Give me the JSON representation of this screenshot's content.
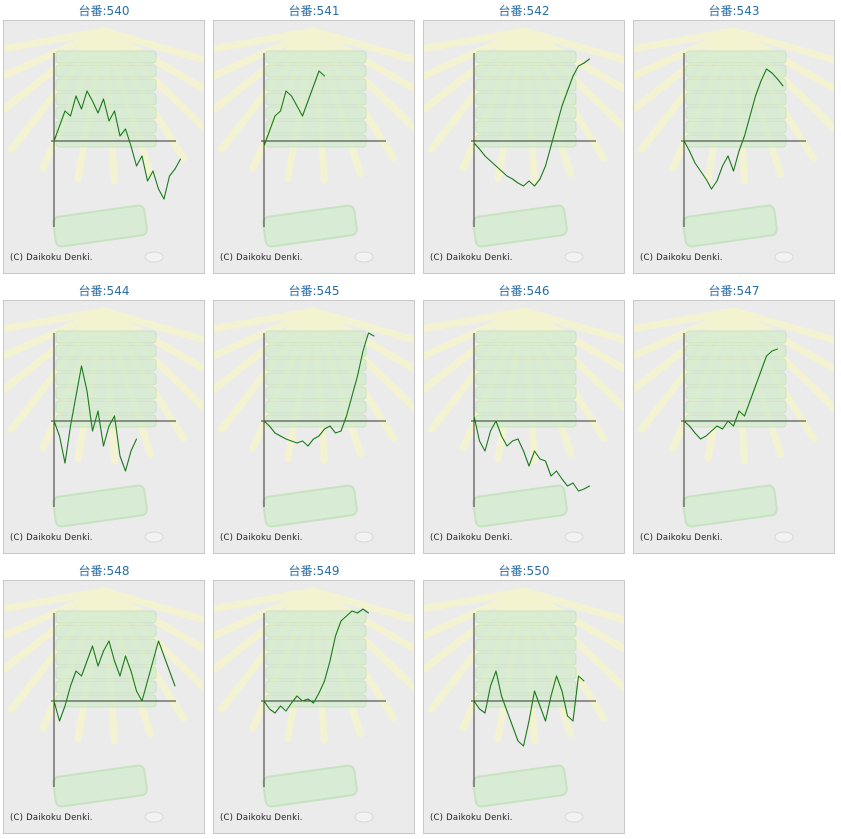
{
  "page": {
    "copyright": "(C) Daikoku Denki.",
    "line_color": "#1a7a1a",
    "axis_color": "#333333",
    "title_color": "#2a6fa8"
  },
  "charts": [
    {
      "title": "台番:540"
    },
    {
      "title": "台番:541"
    },
    {
      "title": "台番:542"
    },
    {
      "title": "台番:543"
    },
    {
      "title": "台番:544"
    },
    {
      "title": "台番:545"
    },
    {
      "title": "台番:546"
    },
    {
      "title": "台番:547"
    },
    {
      "title": "台番:548"
    },
    {
      "title": "台番:549"
    },
    {
      "title": "台番:550"
    }
  ],
  "chart_data": [
    {
      "type": "line",
      "title": "台番:540",
      "x": [
        0,
        5,
        10,
        15,
        20,
        25,
        30,
        35,
        40,
        45,
        50,
        55,
        60,
        65,
        70,
        75,
        80,
        85,
        90,
        95,
        100,
        105,
        110,
        115
      ],
      "y": [
        0,
        15,
        30,
        25,
        45,
        32,
        50,
        40,
        28,
        42,
        20,
        30,
        5,
        12,
        -5,
        -25,
        -15,
        -40,
        -30,
        -48,
        -58,
        -35,
        -28,
        -18
      ]
    },
    {
      "type": "line",
      "title": "台番:541",
      "x": [
        0,
        5,
        10,
        15,
        20,
        25,
        30,
        35,
        40,
        45,
        50,
        55
      ],
      "y": [
        -5,
        10,
        25,
        30,
        50,
        45,
        35,
        25,
        40,
        55,
        70,
        65
      ]
    },
    {
      "type": "line",
      "title": "台番:542",
      "x": [
        0,
        5,
        10,
        15,
        20,
        25,
        30,
        35,
        40,
        45,
        50,
        55,
        60,
        65,
        70,
        75,
        80,
        85,
        90,
        95,
        100,
        105
      ],
      "y": [
        -2,
        -8,
        -15,
        -20,
        -25,
        -30,
        -35,
        -38,
        -42,
        -45,
        -40,
        -45,
        -38,
        -25,
        -5,
        15,
        35,
        50,
        65,
        75,
        78,
        82
      ]
    },
    {
      "type": "line",
      "title": "台番:543",
      "x": [
        0,
        5,
        10,
        15,
        20,
        25,
        30,
        35,
        40,
        45,
        50,
        55,
        60,
        65,
        70,
        75,
        80,
        85,
        90
      ],
      "y": [
        0,
        -10,
        -22,
        -30,
        -38,
        -48,
        -40,
        -25,
        -15,
        -30,
        -10,
        5,
        25,
        45,
        60,
        72,
        68,
        62,
        55
      ]
    },
    {
      "type": "line",
      "title": "台番:544",
      "x": [
        0,
        5,
        10,
        15,
        20,
        25,
        30,
        35,
        40,
        45,
        50,
        55,
        60,
        65,
        70,
        75
      ],
      "y": [
        0,
        -15,
        -42,
        -5,
        25,
        55,
        30,
        -10,
        10,
        -25,
        -5,
        5,
        -35,
        -50,
        -30,
        -18
      ]
    },
    {
      "type": "line",
      "title": "台番:545",
      "x": [
        0,
        5,
        10,
        15,
        20,
        25,
        30,
        35,
        40,
        45,
        50,
        55,
        60,
        65,
        70,
        75,
        80,
        85,
        90,
        95,
        100
      ],
      "y": [
        0,
        -5,
        -12,
        -15,
        -18,
        -20,
        -22,
        -20,
        -25,
        -18,
        -15,
        -8,
        -5,
        -12,
        -10,
        5,
        25,
        45,
        70,
        88,
        85
      ]
    },
    {
      "type": "line",
      "title": "台番:546",
      "x": [
        0,
        5,
        10,
        15,
        20,
        25,
        30,
        35,
        40,
        45,
        50,
        55,
        60,
        65,
        70,
        75,
        80,
        85,
        90,
        95,
        100,
        105
      ],
      "y": [
        5,
        -20,
        -30,
        -10,
        0,
        -15,
        -25,
        -20,
        -18,
        -30,
        -45,
        -30,
        -38,
        -40,
        -55,
        -50,
        -58,
        -65,
        -62,
        -70,
        -68,
        -65
      ]
    },
    {
      "type": "line",
      "title": "台番:547",
      "x": [
        0,
        5,
        10,
        15,
        20,
        25,
        30,
        35,
        40,
        45,
        50,
        55,
        60,
        65,
        70,
        75,
        80,
        85
      ],
      "y": [
        0,
        -5,
        -12,
        -18,
        -15,
        -10,
        -5,
        -8,
        0,
        -5,
        10,
        5,
        20,
        35,
        50,
        65,
        70,
        72
      ]
    },
    {
      "type": "line",
      "title": "台番:548",
      "x": [
        0,
        5,
        10,
        15,
        20,
        25,
        30,
        35,
        40,
        45,
        50,
        55,
        60,
        65,
        70,
        75,
        80,
        85,
        90,
        95,
        100,
        105,
        110
      ],
      "y": [
        0,
        -20,
        -5,
        15,
        30,
        25,
        40,
        55,
        35,
        50,
        60,
        40,
        25,
        45,
        30,
        10,
        0,
        20,
        40,
        60,
        45,
        30,
        15
      ]
    },
    {
      "type": "line",
      "title": "台番:549",
      "x": [
        0,
        5,
        10,
        15,
        20,
        25,
        30,
        35,
        40,
        45,
        50,
        55,
        60,
        65,
        70,
        75,
        80,
        85,
        90,
        95
      ],
      "y": [
        0,
        -8,
        -12,
        -5,
        -10,
        -2,
        5,
        0,
        2,
        -2,
        8,
        20,
        40,
        65,
        80,
        85,
        90,
        88,
        92,
        88
      ]
    },
    {
      "type": "line",
      "title": "台番:550",
      "x": [
        0,
        5,
        10,
        15,
        20,
        25,
        30,
        35,
        40,
        45,
        50,
        55,
        60,
        65,
        70,
        75,
        80,
        85,
        90,
        95,
        100
      ],
      "y": [
        0,
        -8,
        -12,
        15,
        30,
        5,
        -10,
        -25,
        -40,
        -45,
        -20,
        10,
        -5,
        -20,
        5,
        25,
        10,
        -15,
        -20,
        25,
        20
      ]
    }
  ]
}
